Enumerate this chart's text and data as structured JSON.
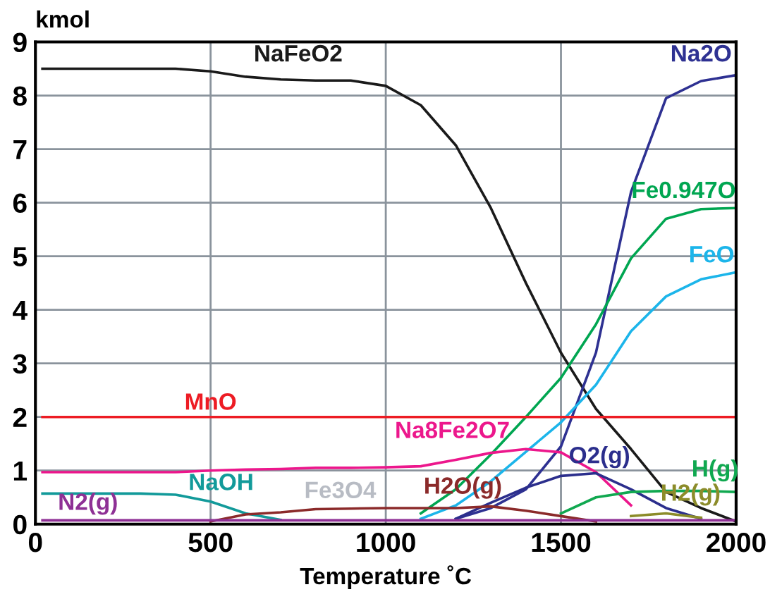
{
  "chart_data": {
    "type": "line",
    "xlabel": "Temperature ˚C",
    "ylabel": "kmol",
    "x": [
      20,
      100,
      200,
      300,
      400,
      500,
      600,
      700,
      800,
      900,
      1000,
      1100,
      1200,
      1300,
      1400,
      1500,
      1600,
      1700,
      1800,
      1900,
      2000
    ],
    "xlim": [
      0,
      2000
    ],
    "xticks": [
      0,
      500,
      1000,
      1500,
      2000
    ],
    "ylim": [
      0,
      9
    ],
    "yticks": [
      0,
      1,
      2,
      3,
      4,
      5,
      6,
      7,
      8,
      9
    ],
    "grid": true,
    "legend": false,
    "marker": "none",
    "line_style": "solid",
    "series": [
      {
        "name": "NaFeO2",
        "color": "#1a1a1a",
        "values": [
          8.5,
          8.5,
          8.5,
          8.5,
          8.5,
          8.45,
          8.35,
          8.3,
          8.28,
          8.28,
          8.18,
          7.82,
          7.07,
          5.9,
          4.5,
          3.2,
          2.15,
          1.4,
          0.6,
          0.3,
          0.05
        ]
      },
      {
        "name": "Na2O",
        "color": "#2e3192",
        "values": [
          null,
          null,
          null,
          null,
          null,
          null,
          null,
          null,
          null,
          null,
          null,
          null,
          0.1,
          0.3,
          0.65,
          1.45,
          3.2,
          6.2,
          7.95,
          8.27,
          8.38
        ]
      },
      {
        "name": "Fe0.947O",
        "color": "#00a651",
        "values": [
          null,
          null,
          null,
          null,
          null,
          null,
          null,
          null,
          null,
          null,
          null,
          0.2,
          0.65,
          1.3,
          2.0,
          2.73,
          3.73,
          4.96,
          5.7,
          5.88,
          5.9
        ]
      },
      {
        "name": "FeO",
        "color": "#1cb5ea",
        "values": [
          null,
          null,
          null,
          null,
          null,
          null,
          null,
          null,
          null,
          null,
          null,
          0.1,
          0.35,
          0.8,
          1.35,
          1.9,
          2.6,
          3.6,
          4.25,
          4.57,
          4.7
        ]
      },
      {
        "name": "MnO",
        "color": "#ed1c24",
        "values": [
          2.0,
          2.0,
          2.0,
          2.0,
          2.0,
          2.0,
          2.0,
          2.0,
          2.0,
          2.0,
          2.0,
          2.0,
          2.0,
          2.0,
          2.0,
          2.0,
          2.0,
          2.0,
          2.0,
          2.0,
          2.0
        ]
      },
      {
        "name": "Na8Fe2O7",
        "color": "#ec178c",
        "values": [
          0.97,
          0.97,
          0.97,
          0.97,
          0.97,
          1.0,
          1.02,
          1.03,
          1.05,
          1.05,
          1.06,
          1.08,
          1.2,
          1.33,
          1.4,
          1.34,
          0.97,
          0.35,
          null,
          null,
          null
        ]
      },
      {
        "name": "O2(g)",
        "color": "#2b2e8c",
        "values": [
          null,
          null,
          null,
          null,
          null,
          null,
          null,
          null,
          null,
          null,
          null,
          null,
          0.1,
          0.4,
          0.68,
          0.9,
          0.95,
          0.65,
          0.3,
          0.1,
          null
        ]
      },
      {
        "name": "H(g)",
        "color": "#10a850",
        "values": [
          null,
          null,
          null,
          null,
          null,
          null,
          null,
          null,
          null,
          null,
          null,
          null,
          null,
          null,
          null,
          0.2,
          0.5,
          0.6,
          0.62,
          0.62,
          0.6
        ]
      },
      {
        "name": "H2(g)",
        "color": "#8c8c2a",
        "values": [
          null,
          null,
          null,
          null,
          null,
          null,
          null,
          null,
          null,
          null,
          null,
          null,
          null,
          null,
          null,
          null,
          null,
          0.15,
          0.2,
          0.12,
          null
        ]
      },
      {
        "name": "NaOH",
        "color": "#129a9a",
        "values": [
          0.57,
          0.57,
          0.57,
          0.57,
          0.55,
          0.42,
          0.2,
          0.08,
          null,
          null,
          null,
          null,
          null,
          null,
          null,
          null,
          null,
          null,
          null,
          null,
          null
        ]
      },
      {
        "name": "Fe3O4",
        "color": "#b8bcc4",
        "values": [
          null,
          null,
          null,
          null,
          null,
          null,
          null,
          null,
          null,
          null,
          null,
          null,
          null,
          null,
          null,
          null,
          null,
          null,
          null,
          null,
          null
        ]
      },
      {
        "name": "H2O(g)",
        "color": "#8b2a2a",
        "values": [
          null,
          null,
          null,
          null,
          null,
          0.05,
          0.18,
          0.22,
          0.28,
          0.29,
          0.3,
          0.3,
          0.3,
          0.33,
          0.25,
          0.15,
          0.05,
          null,
          null,
          null,
          null
        ]
      },
      {
        "name": "N2(g)",
        "color": "#8e3095",
        "values": [
          0.07,
          0.07,
          0.07,
          0.07,
          0.07,
          0.07,
          0.07,
          0.07,
          0.07,
          0.07,
          0.07,
          0.07,
          0.07,
          0.07,
          0.07,
          0.07,
          0.07,
          0.07,
          0.07,
          0.07,
          0.07
        ]
      }
    ]
  }
}
